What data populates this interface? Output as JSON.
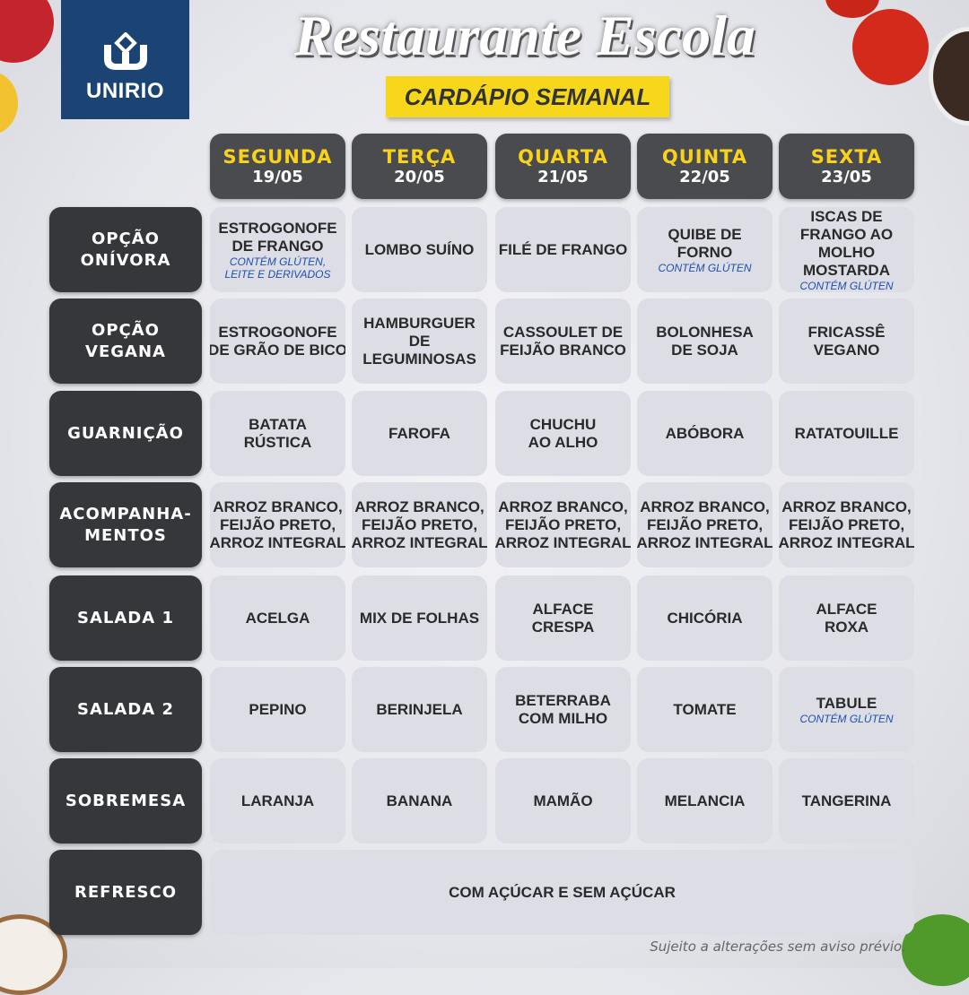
{
  "logo": {
    "text": "UNIRIO"
  },
  "header": {
    "title": "Restaurante Escola",
    "subtitle": "CARDÁPIO SEMANAL"
  },
  "days": [
    {
      "name": "SEGUNDA",
      "date": "19/05"
    },
    {
      "name": "TERÇA",
      "date": "20/05"
    },
    {
      "name": "QUARTA",
      "date": "21/05"
    },
    {
      "name": "QUINTA",
      "date": "22/05"
    },
    {
      "name": "SEXTA",
      "date": "23/05"
    }
  ],
  "rows": [
    {
      "label": "OPÇÃO\nONÍVORA",
      "items": [
        {
          "text": "ESTROGONOFE\nDE FRANGO",
          "note": "CONTÉM GLÚTEN,\nLEITE E DERIVADOS"
        },
        {
          "text": "LOMBO SUÍNO"
        },
        {
          "text": "FILÉ DE FRANGO"
        },
        {
          "text": "QUIBE DE\nFORNO",
          "note": "CONTÉM GLÚTEN"
        },
        {
          "text": "ISCAS DE\nFRANGO AO\nMOLHO\nMOSTARDA",
          "note": "CONTÉM GLÚTEN"
        }
      ]
    },
    {
      "label": "OPÇÃO\nVEGANA",
      "items": [
        {
          "text": "ESTROGONOFE\nDE GRÃO DE BICO"
        },
        {
          "text": "HAMBURGUER\nDE\nLEGUMINOSAS"
        },
        {
          "text": "CASSOULET DE\nFEIJÃO BRANCO"
        },
        {
          "text": "BOLONHESA\nDE SOJA"
        },
        {
          "text": "FRICASSÊ\nVEGANO"
        }
      ]
    },
    {
      "label": "GUARNIÇÃO",
      "items": [
        {
          "text": "BATATA\nRÚSTICA"
        },
        {
          "text": "FAROFA"
        },
        {
          "text": "CHUCHU\nAO ALHO"
        },
        {
          "text": "ABÓBORA"
        },
        {
          "text": "RATATOUILLE"
        }
      ]
    },
    {
      "label": "ACOMPANHA-\nMENTOS",
      "items": [
        {
          "text": "ARROZ BRANCO,\nFEIJÃO PRETO,\nARROZ INTEGRAL"
        },
        {
          "text": "ARROZ BRANCO,\nFEIJÃO PRETO,\nARROZ INTEGRAL"
        },
        {
          "text": "ARROZ BRANCO,\nFEIJÃO PRETO,\nARROZ INTEGRAL"
        },
        {
          "text": "ARROZ BRANCO,\nFEIJÃO PRETO,\nARROZ INTEGRAL"
        },
        {
          "text": "ARROZ BRANCO,\nFEIJÃO PRETO,\nARROZ INTEGRAL"
        }
      ]
    },
    {
      "label": "SALADA 1",
      "items": [
        {
          "text": "ACELGA"
        },
        {
          "text": "MIX DE FOLHAS"
        },
        {
          "text": "ALFACE\nCRESPA"
        },
        {
          "text": "CHICÓRIA"
        },
        {
          "text": "ALFACE\nROXA"
        }
      ]
    },
    {
      "label": "SALADA 2",
      "items": [
        {
          "text": "PEPINO"
        },
        {
          "text": "BERINJELA"
        },
        {
          "text": "BETERRABA\nCOM MILHO"
        },
        {
          "text": "TOMATE"
        },
        {
          "text": "TABULE",
          "note": "CONTÉM GLÚTEN"
        }
      ]
    },
    {
      "label": "SOBREMESA",
      "items": [
        {
          "text": "LARANJA"
        },
        {
          "text": "BANANA"
        },
        {
          "text": "MAMÃO"
        },
        {
          "text": "MELANCIA"
        },
        {
          "text": "TANGERINA"
        }
      ]
    }
  ],
  "refresco": {
    "label": "REFRESCO",
    "text": "COM AÇÚCAR E SEM AÇÚCAR"
  },
  "footer": "Sujeito a alterações sem aviso prévio.",
  "colors": {
    "logo_bg": "#1b4373",
    "highlight": "#f7d71c",
    "day_name": "#f9d21b",
    "label_bg": "#36373b",
    "cell_bg": "#dcdde5",
    "note": "#1d4fb0"
  }
}
